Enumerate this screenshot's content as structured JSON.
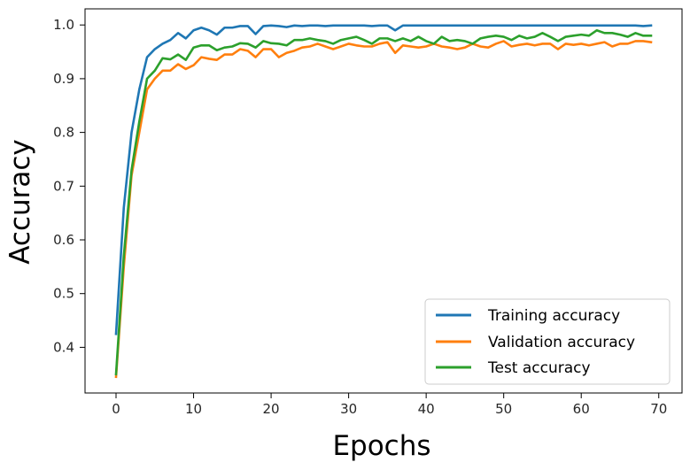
{
  "chart_data": {
    "type": "line",
    "title": "",
    "xlabel": "Epochs",
    "ylabel": "Accuracy",
    "xlim": [
      -4,
      73
    ],
    "ylim": [
      0.315,
      1.03
    ],
    "xticks": [
      0,
      10,
      20,
      30,
      40,
      50,
      60,
      70
    ],
    "yticks": [
      0.4,
      0.5,
      0.6,
      0.7,
      0.8,
      0.9,
      1.0
    ],
    "xtick_labels": [
      "0",
      "10",
      "20",
      "30",
      "40",
      "50",
      "60",
      "70"
    ],
    "ytick_labels": [
      "0.4",
      "0.5",
      "0.6",
      "0.7",
      "0.8",
      "0.9",
      "1.0"
    ],
    "grid": false,
    "legend_position": "bottom-right",
    "series": [
      {
        "name": "Training accuracy",
        "color": "#1f77b4",
        "x": [
          0,
          1,
          2,
          3,
          4,
          5,
          6,
          7,
          8,
          9,
          10,
          11,
          12,
          13,
          14,
          15,
          16,
          17,
          18,
          19,
          20,
          21,
          22,
          23,
          24,
          25,
          26,
          27,
          28,
          29,
          30,
          31,
          32,
          33,
          34,
          35,
          36,
          37,
          38,
          39,
          40,
          41,
          42,
          43,
          44,
          45,
          46,
          47,
          48,
          49,
          50,
          51,
          52,
          53,
          54,
          55,
          56,
          57,
          58,
          59,
          60,
          61,
          62,
          63,
          64,
          65,
          66,
          67,
          68,
          69
        ],
        "y": [
          0.425,
          0.66,
          0.8,
          0.88,
          0.94,
          0.955,
          0.965,
          0.972,
          0.985,
          0.975,
          0.99,
          0.995,
          0.99,
          0.982,
          0.995,
          0.995,
          0.998,
          0.998,
          0.983,
          0.998,
          0.999,
          0.998,
          0.996,
          0.999,
          0.998,
          0.999,
          0.999,
          0.998,
          0.999,
          0.999,
          0.999,
          0.999,
          0.999,
          0.998,
          0.999,
          0.999,
          0.99,
          0.999,
          0.999,
          0.999,
          0.999,
          0.999,
          0.999,
          0.999,
          0.999,
          0.999,
          0.999,
          0.999,
          0.999,
          0.999,
          0.999,
          0.999,
          0.999,
          0.999,
          0.999,
          0.999,
          0.999,
          0.999,
          0.999,
          0.999,
          0.999,
          0.999,
          0.999,
          0.999,
          0.999,
          0.999,
          0.999,
          0.999,
          0.998,
          0.999
        ]
      },
      {
        "name": "Validation accuracy",
        "color": "#ff7f0e",
        "x": [
          0,
          1,
          2,
          3,
          4,
          5,
          6,
          7,
          8,
          9,
          10,
          11,
          12,
          13,
          14,
          15,
          16,
          17,
          18,
          19,
          20,
          21,
          22,
          23,
          24,
          25,
          26,
          27,
          28,
          29,
          30,
          31,
          32,
          33,
          34,
          35,
          36,
          37,
          38,
          39,
          40,
          41,
          42,
          43,
          44,
          45,
          46,
          47,
          48,
          49,
          50,
          51,
          52,
          53,
          54,
          55,
          56,
          57,
          58,
          59,
          60,
          61,
          62,
          63,
          64,
          65,
          66,
          67,
          68,
          69
        ],
        "y": [
          0.345,
          0.55,
          0.72,
          0.8,
          0.88,
          0.9,
          0.915,
          0.915,
          0.927,
          0.918,
          0.925,
          0.94,
          0.937,
          0.935,
          0.945,
          0.945,
          0.955,
          0.952,
          0.94,
          0.955,
          0.955,
          0.94,
          0.948,
          0.952,
          0.958,
          0.96,
          0.965,
          0.96,
          0.955,
          0.96,
          0.965,
          0.962,
          0.96,
          0.96,
          0.965,
          0.968,
          0.948,
          0.962,
          0.96,
          0.958,
          0.96,
          0.965,
          0.96,
          0.958,
          0.955,
          0.958,
          0.965,
          0.96,
          0.958,
          0.965,
          0.97,
          0.96,
          0.963,
          0.965,
          0.962,
          0.965,
          0.965,
          0.955,
          0.965,
          0.963,
          0.965,
          0.962,
          0.965,
          0.968,
          0.96,
          0.965,
          0.965,
          0.97,
          0.97,
          0.968
        ]
      },
      {
        "name": "Test accuracy",
        "color": "#2ca02c",
        "x": [
          0,
          1,
          2,
          3,
          4,
          5,
          6,
          7,
          8,
          9,
          10,
          11,
          12,
          13,
          14,
          15,
          16,
          17,
          18,
          19,
          20,
          21,
          22,
          23,
          24,
          25,
          26,
          27,
          28,
          29,
          30,
          31,
          32,
          33,
          34,
          35,
          36,
          37,
          38,
          39,
          40,
          41,
          42,
          43,
          44,
          45,
          46,
          47,
          48,
          49,
          50,
          51,
          52,
          53,
          54,
          55,
          56,
          57,
          58,
          59,
          60,
          61,
          62,
          63,
          64,
          65,
          66,
          67,
          68,
          69
        ],
        "y": [
          0.35,
          0.57,
          0.73,
          0.82,
          0.9,
          0.915,
          0.938,
          0.936,
          0.945,
          0.935,
          0.958,
          0.962,
          0.962,
          0.953,
          0.958,
          0.96,
          0.966,
          0.965,
          0.958,
          0.97,
          0.966,
          0.965,
          0.962,
          0.972,
          0.972,
          0.975,
          0.972,
          0.97,
          0.965,
          0.972,
          0.975,
          0.978,
          0.972,
          0.965,
          0.975,
          0.975,
          0.97,
          0.975,
          0.97,
          0.978,
          0.97,
          0.965,
          0.978,
          0.97,
          0.972,
          0.97,
          0.965,
          0.975,
          0.978,
          0.98,
          0.978,
          0.972,
          0.98,
          0.975,
          0.978,
          0.985,
          0.978,
          0.97,
          0.978,
          0.98,
          0.982,
          0.98,
          0.99,
          0.985,
          0.985,
          0.982,
          0.978,
          0.985,
          0.98,
          0.98
        ]
      }
    ]
  }
}
